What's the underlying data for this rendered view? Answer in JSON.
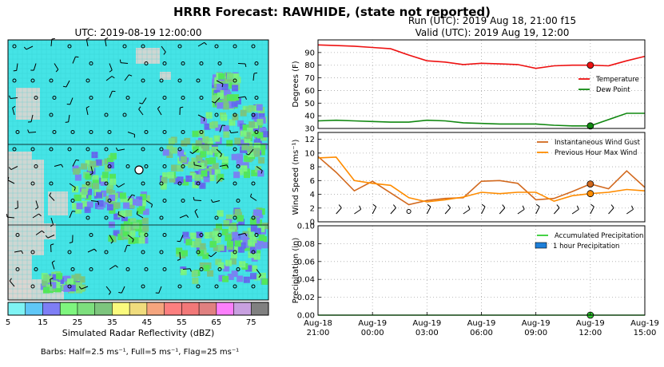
{
  "figure": {
    "title": "HRRR Forecast: RAWHIDE, (state not reported)",
    "map_timestamp": "UTC: 2019-08-19 12:00:00",
    "run_line": "Run (UTC): 2019 Aug 18, 21:00 f15",
    "valid_line": "Valid (UTC): 2019 Aug 19, 12:00",
    "colorbar_label": "Simulated Radar Reflectivity (dBZ)",
    "barb_note": "Barbs: Half=2.5 ms⁻¹, Full=5 ms⁻¹, Flag=25 ms⁻¹"
  },
  "colors": {
    "temperature": "#ee1111",
    "dew_point": "#118811",
    "gust": "#d2691e",
    "max_wind": "#ff8c00",
    "precip_accum": "#32cd32",
    "precip_hourly": "#1e7fd9",
    "map_base": "#45e4e6",
    "terrain": "#ddd5d0"
  },
  "colorbar": {
    "ticks": [
      "5",
      "15",
      "25",
      "35",
      "45",
      "55",
      "65",
      "75"
    ],
    "colors": [
      "#7ef3f4",
      "#5fc7f7",
      "#7e7ef5",
      "#7ef57e",
      "#7ddf7d",
      "#7dc57d",
      "#fafa7d",
      "#f0dc7d",
      "#f5a57e",
      "#fc7f7f",
      "#f27878",
      "#e08080",
      "#fc7ffc",
      "#c8a0e0",
      "#808080"
    ]
  },
  "chart_data": [
    {
      "type": "line",
      "panel": "temperature",
      "ylabel": "Degrees (F)",
      "ylim": [
        30,
        100
      ],
      "yticks": [
        30,
        40,
        50,
        60,
        70,
        80,
        90
      ],
      "grid": true,
      "legend": "right",
      "x": [
        0,
        1,
        2,
        3,
        4,
        5,
        6,
        7,
        8,
        9,
        10,
        11,
        12,
        13,
        14,
        15,
        16,
        17,
        18
      ],
      "series": [
        {
          "name": "Temperature",
          "values": [
            96,
            95.5,
            95,
            94,
            93,
            88,
            83.5,
            82.5,
            80.5,
            81.5,
            81,
            80.5,
            77.5,
            79.5,
            80,
            80,
            79.5,
            83.5,
            87
          ]
        },
        {
          "name": "Dew Point",
          "values": [
            36,
            36.5,
            36,
            35.5,
            35,
            35,
            36.5,
            36,
            34.5,
            34,
            33.5,
            33.5,
            33.5,
            32.5,
            32,
            32,
            37,
            42,
            42
          ]
        }
      ],
      "marker_index": 15
    },
    {
      "type": "line",
      "panel": "wind",
      "ylabel": "Wind Speed (ms⁻¹)",
      "ylim": [
        0,
        13
      ],
      "yticks": [
        0,
        2,
        4,
        6,
        8,
        10,
        12
      ],
      "grid": true,
      "legend": "top-right",
      "x": [
        0,
        1,
        2,
        3,
        4,
        5,
        6,
        7,
        8,
        9,
        10,
        11,
        12,
        13,
        14,
        15,
        16,
        17,
        18
      ],
      "series": [
        {
          "name": "Instantaneous Wind Gust",
          "values": [
            9.5,
            7.2,
            4.5,
            5.9,
            4.2,
            2.5,
            3.1,
            3.4,
            3.5,
            5.9,
            6.0,
            5.6,
            3.2,
            3.4,
            4.4,
            5.5,
            4.8,
            7.4,
            5.0
          ]
        },
        {
          "name": "Previous Hour Max Wind",
          "values": [
            9.3,
            9.4,
            6.0,
            5.6,
            5.3,
            3.5,
            2.9,
            3.2,
            3.6,
            4.3,
            4.1,
            4.3,
            4.3,
            3.0,
            3.8,
            4.1,
            4.3,
            4.7,
            4.5
          ]
        }
      ],
      "marker_index": 15
    },
    {
      "type": "line",
      "panel": "precipitation",
      "ylabel": "Precipitation (in)",
      "ylim": [
        0,
        0.1
      ],
      "yticks": [
        "0.00",
        "0.02",
        "0.04",
        "0.06",
        "0.08",
        "0.10"
      ],
      "grid": true,
      "legend": "top-right",
      "x": [
        0,
        1,
        2,
        3,
        4,
        5,
        6,
        7,
        8,
        9,
        10,
        11,
        12,
        13,
        14,
        15,
        16,
        17,
        18
      ],
      "series": [
        {
          "name": "Accumulated Precipitation",
          "values": [
            0,
            0,
            0,
            0,
            0,
            0,
            0,
            0,
            0,
            0,
            0,
            0,
            0,
            0,
            0,
            0,
            0,
            0,
            0
          ]
        },
        {
          "name": "1 hour Precipitation",
          "values": [
            0,
            0,
            0,
            0,
            0,
            0,
            0,
            0,
            0,
            0,
            0,
            0,
            0,
            0,
            0,
            0,
            0,
            0,
            0
          ]
        }
      ],
      "marker_index": 15,
      "xticks": [
        {
          "line1": "Aug-18",
          "line2": "21:00"
        },
        {
          "line1": "Aug-19",
          "line2": "00:00"
        },
        {
          "line1": "Aug-19",
          "line2": "03:00"
        },
        {
          "line1": "Aug-19",
          "line2": "06:00"
        },
        {
          "line1": "Aug-19",
          "line2": "09:00"
        },
        {
          "line1": "Aug-19",
          "line2": "12:00"
        },
        {
          "line1": "Aug-19",
          "line2": "15:00"
        }
      ]
    }
  ]
}
